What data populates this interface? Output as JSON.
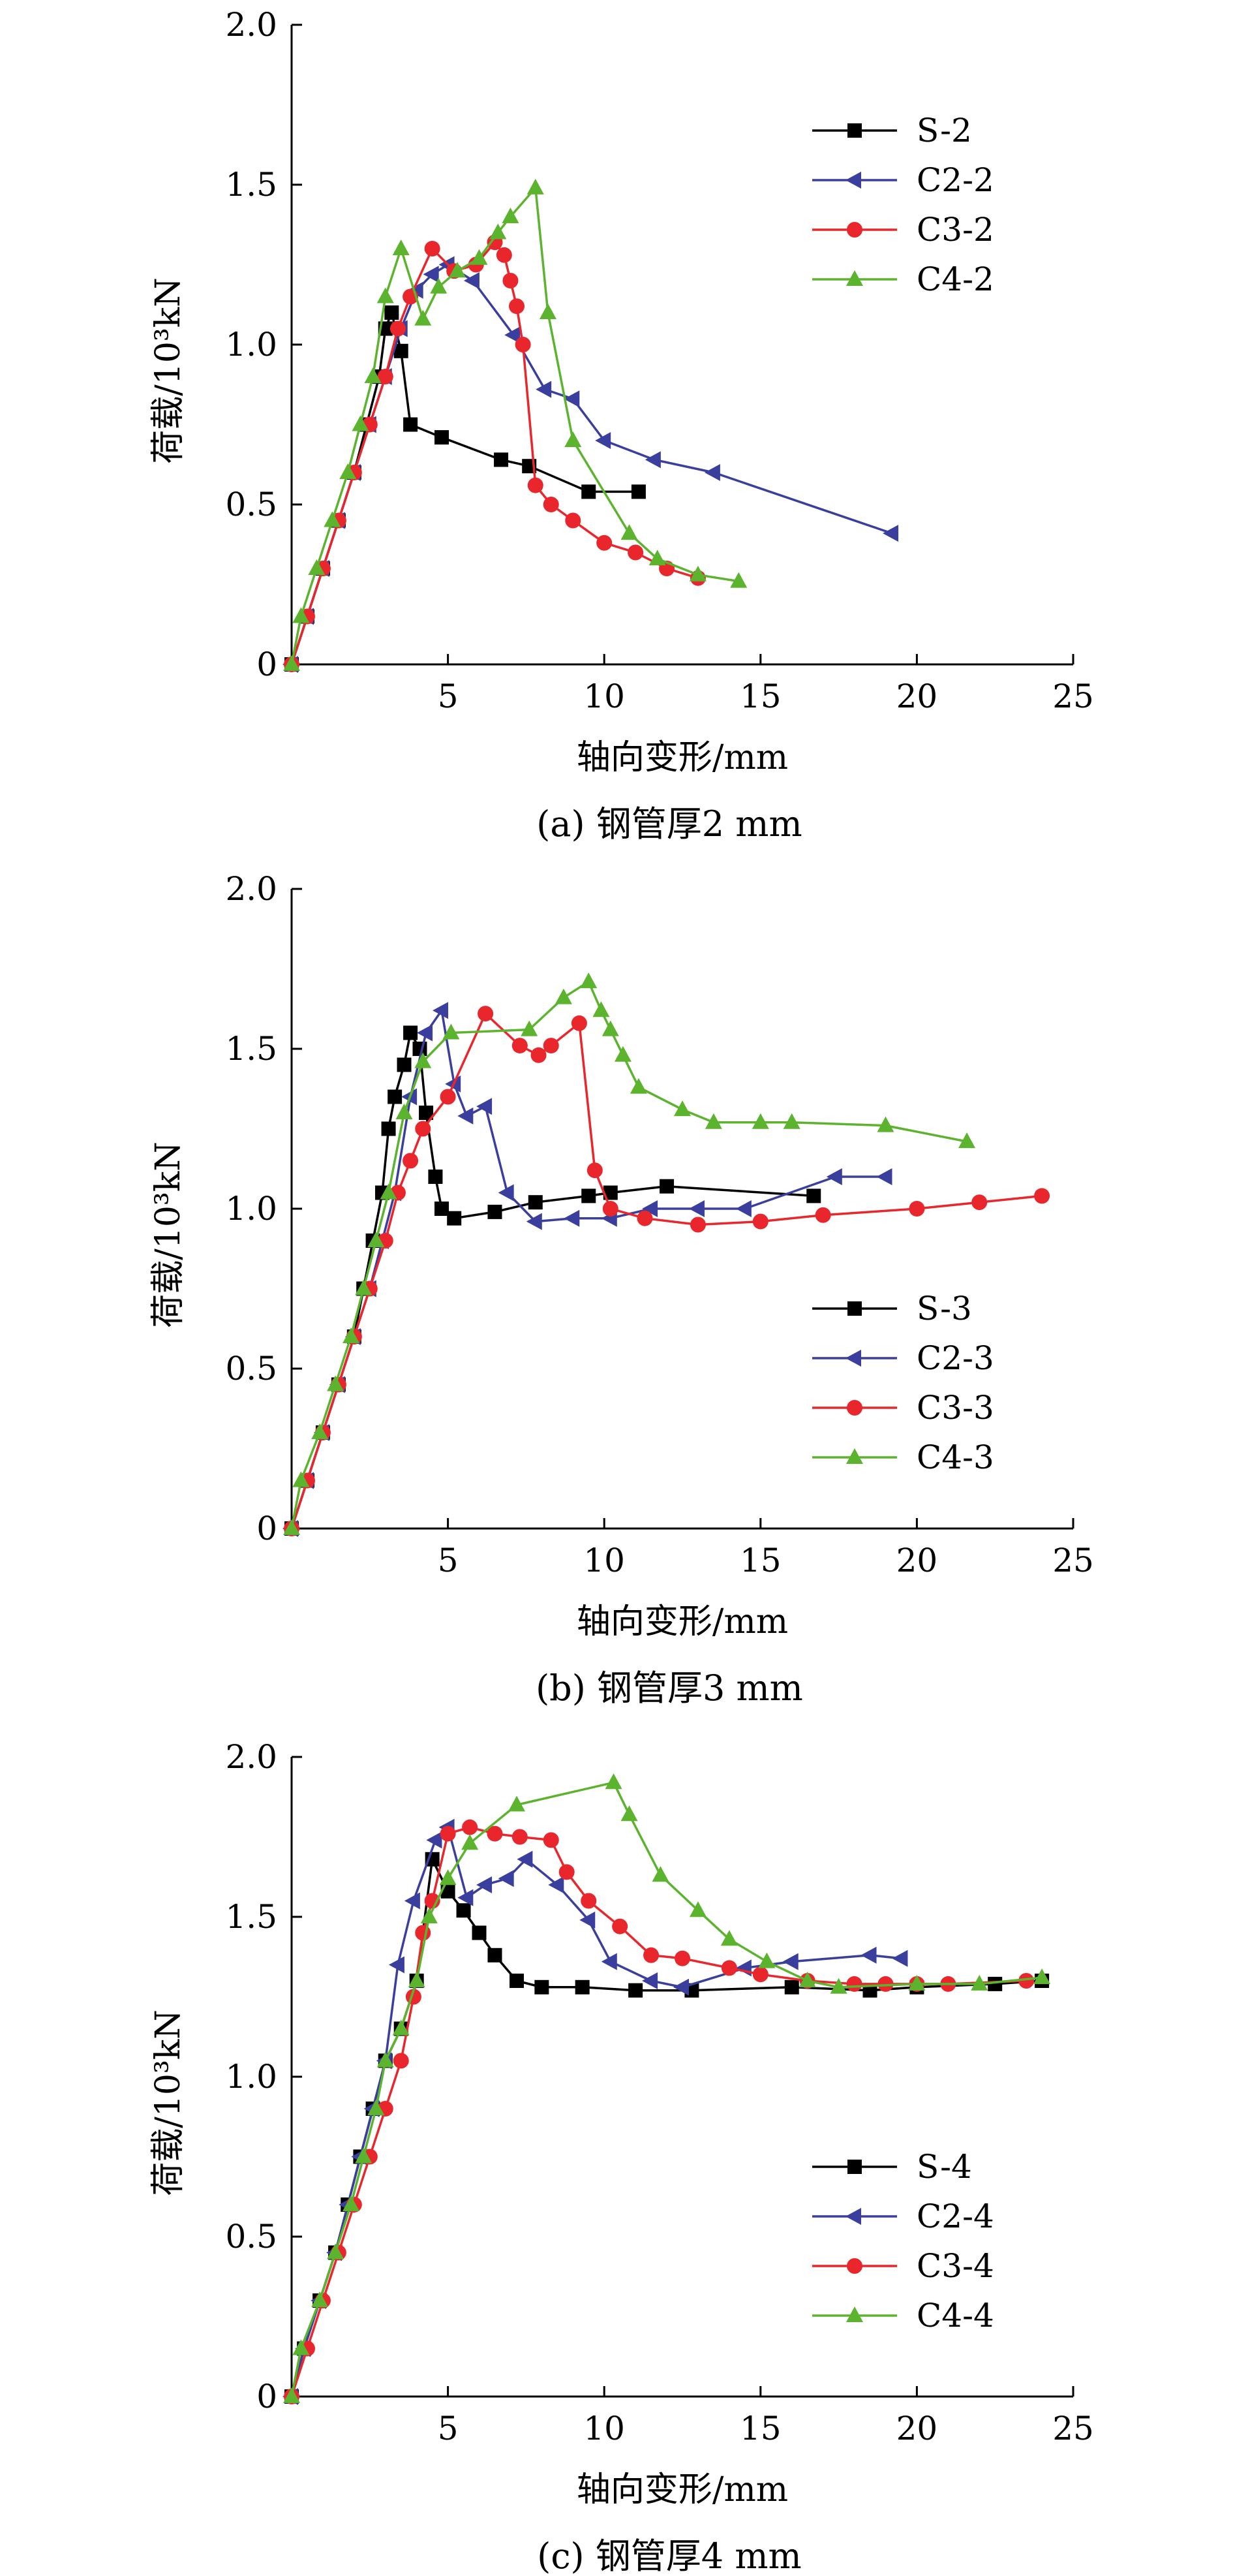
{
  "chart_data": [
    {
      "type": "line",
      "title": "(a) 钢管厚2 mm",
      "xlabel": "轴向变形/mm",
      "ylabel": "荷载/10³kN",
      "xlim": [
        0,
        25
      ],
      "ylim": [
        0,
        2.0
      ],
      "xticks": [
        "5",
        "10",
        "15",
        "20",
        "25"
      ],
      "yticks": [
        "0",
        "0.5",
        "1.0",
        "1.5",
        "2.0"
      ],
      "legend_position": "top-right",
      "series": [
        {
          "name": "S-2",
          "color": "#000000",
          "marker": "square",
          "x": [
            0,
            0.5,
            1.0,
            1.5,
            2.0,
            2.4,
            2.8,
            3.0,
            3.2,
            3.5,
            3.8,
            4.8,
            6.7,
            7.6,
            9.5,
            11.1
          ],
          "y": [
            0,
            0.15,
            0.3,
            0.45,
            0.6,
            0.75,
            0.9,
            1.05,
            1.1,
            0.98,
            0.75,
            0.71,
            0.64,
            0.62,
            0.54,
            0.54
          ]
        },
        {
          "name": "C2-2",
          "color": "#3a3f9e",
          "marker": "triangle-left",
          "x": [
            0,
            0.5,
            1.0,
            1.5,
            2.0,
            2.5,
            3.0,
            3.5,
            4.0,
            4.5,
            5.0,
            5.8,
            7.1,
            8.1,
            9.0,
            10.0,
            11.6,
            13.5,
            19.2
          ],
          "y": [
            0,
            0.15,
            0.3,
            0.45,
            0.6,
            0.75,
            0.9,
            1.05,
            1.17,
            1.22,
            1.25,
            1.2,
            1.03,
            0.86,
            0.83,
            0.7,
            0.64,
            0.6,
            0.41
          ]
        },
        {
          "name": "C3-2",
          "color": "#e8262c",
          "marker": "circle",
          "x": [
            0,
            0.5,
            1.0,
            1.5,
            2.0,
            2.5,
            3.0,
            3.4,
            3.8,
            4.5,
            5.2,
            5.9,
            6.5,
            6.8,
            7.0,
            7.2,
            7.4,
            7.8,
            8.3,
            9.0,
            10.0,
            11.0,
            12.0,
            13.0
          ],
          "y": [
            0,
            0.15,
            0.3,
            0.45,
            0.6,
            0.75,
            0.9,
            1.05,
            1.15,
            1.3,
            1.23,
            1.25,
            1.32,
            1.28,
            1.2,
            1.12,
            1.0,
            0.56,
            0.5,
            0.45,
            0.38,
            0.35,
            0.3,
            0.27
          ]
        },
        {
          "name": "C4-2",
          "color": "#5cb32e",
          "marker": "triangle-up",
          "x": [
            0,
            0.3,
            0.8,
            1.3,
            1.8,
            2.2,
            2.6,
            3.0,
            3.5,
            4.2,
            4.7,
            5.3,
            6.0,
            6.6,
            7.0,
            7.8,
            8.2,
            9.0,
            10.8,
            11.7,
            13.0,
            14.3
          ],
          "y": [
            0,
            0.15,
            0.3,
            0.45,
            0.6,
            0.75,
            0.9,
            1.15,
            1.3,
            1.08,
            1.18,
            1.23,
            1.27,
            1.35,
            1.4,
            1.49,
            1.1,
            0.7,
            0.41,
            0.33,
            0.28,
            0.26
          ]
        }
      ]
    },
    {
      "type": "line",
      "title": "(b) 钢管厚3 mm",
      "xlabel": "轴向变形/mm",
      "ylabel": "荷载/10³kN",
      "xlim": [
        0,
        25
      ],
      "ylim": [
        0,
        2.0
      ],
      "xticks": [
        "5",
        "10",
        "15",
        "20",
        "25"
      ],
      "yticks": [
        "0",
        "0.5",
        "1.0",
        "1.5",
        "2.0"
      ],
      "legend_position": "bottom-right",
      "series": [
        {
          "name": "S-3",
          "color": "#000000",
          "marker": "square",
          "x": [
            0,
            0.5,
            1.0,
            1.5,
            2.0,
            2.3,
            2.6,
            2.9,
            3.1,
            3.3,
            3.6,
            3.8,
            4.1,
            4.3,
            4.6,
            4.8,
            5.2,
            6.5,
            7.8,
            9.5,
            10.2,
            12.0,
            16.7
          ],
          "y": [
            0,
            0.15,
            0.3,
            0.45,
            0.6,
            0.75,
            0.9,
            1.05,
            1.25,
            1.35,
            1.45,
            1.55,
            1.5,
            1.3,
            1.1,
            1.0,
            0.97,
            0.99,
            1.02,
            1.04,
            1.05,
            1.07,
            1.04
          ]
        },
        {
          "name": "C2-3",
          "color": "#3a3f9e",
          "marker": "triangle-left",
          "x": [
            0,
            0.5,
            1.0,
            1.5,
            2.0,
            2.5,
            2.9,
            3.3,
            3.8,
            4.3,
            4.8,
            5.2,
            5.6,
            6.2,
            6.9,
            7.8,
            9.0,
            10.2,
            11.5,
            13.0,
            14.5,
            17.4,
            19.0
          ],
          "y": [
            0,
            0.15,
            0.3,
            0.45,
            0.6,
            0.75,
            0.9,
            1.05,
            1.35,
            1.55,
            1.62,
            1.39,
            1.29,
            1.32,
            1.05,
            0.96,
            0.97,
            0.97,
            1.0,
            1.0,
            1.0,
            1.1,
            1.1
          ]
        },
        {
          "name": "C3-3",
          "color": "#e8262c",
          "marker": "circle",
          "x": [
            0,
            0.5,
            1.0,
            1.5,
            2.0,
            2.5,
            3.0,
            3.4,
            3.8,
            4.2,
            5.0,
            6.2,
            7.3,
            7.9,
            8.3,
            9.2,
            9.7,
            10.2,
            11.3,
            13.0,
            15.0,
            17.0,
            20.0,
            22.0,
            24.0
          ],
          "y": [
            0,
            0.15,
            0.3,
            0.45,
            0.6,
            0.75,
            0.9,
            1.05,
            1.15,
            1.25,
            1.35,
            1.61,
            1.51,
            1.48,
            1.51,
            1.58,
            1.12,
            1.0,
            0.97,
            0.95,
            0.96,
            0.98,
            1.0,
            1.02,
            1.04
          ]
        },
        {
          "name": "C4-3",
          "color": "#5cb32e",
          "marker": "triangle-up",
          "x": [
            0,
            0.3,
            0.9,
            1.4,
            1.9,
            2.3,
            2.7,
            3.1,
            3.6,
            4.2,
            5.1,
            7.6,
            8.7,
            9.5,
            9.9,
            10.2,
            10.6,
            11.1,
            12.5,
            13.5,
            15.0,
            16.0,
            19.0,
            21.6
          ],
          "y": [
            0,
            0.15,
            0.3,
            0.45,
            0.6,
            0.75,
            0.9,
            1.05,
            1.3,
            1.46,
            1.55,
            1.56,
            1.66,
            1.71,
            1.62,
            1.56,
            1.48,
            1.38,
            1.31,
            1.27,
            1.27,
            1.27,
            1.26,
            1.21
          ]
        }
      ]
    },
    {
      "type": "line",
      "title": "(c) 钢管厚4 mm",
      "xlabel": "轴向变形/mm",
      "ylabel": "荷载/10³kN",
      "xlim": [
        0,
        25
      ],
      "ylim": [
        0,
        2.0
      ],
      "xticks": [
        "5",
        "10",
        "15",
        "20",
        "25"
      ],
      "yticks": [
        "0",
        "0.5",
        "1.0",
        "1.5",
        "2.0"
      ],
      "legend_position": "bottom-right",
      "series": [
        {
          "name": "S-4",
          "color": "#000000",
          "marker": "square",
          "x": [
            0,
            0.4,
            0.9,
            1.4,
            1.8,
            2.2,
            2.6,
            3.0,
            3.5,
            4.0,
            4.5,
            5.0,
            5.5,
            6.0,
            6.5,
            7.2,
            8.0,
            9.3,
            11.0,
            12.8,
            16.0,
            18.5,
            20.0,
            22.5,
            24.0
          ],
          "y": [
            0,
            0.15,
            0.3,
            0.45,
            0.6,
            0.75,
            0.9,
            1.05,
            1.15,
            1.3,
            1.68,
            1.58,
            1.52,
            1.45,
            1.38,
            1.3,
            1.28,
            1.28,
            1.27,
            1.27,
            1.28,
            1.27,
            1.28,
            1.29,
            1.3
          ]
        },
        {
          "name": "C2-4",
          "color": "#3a3f9e",
          "marker": "triangle-left",
          "x": [
            0,
            0.4,
            0.9,
            1.4,
            1.8,
            2.2,
            2.6,
            3.0,
            3.4,
            3.9,
            4.6,
            5.0,
            5.6,
            6.2,
            6.9,
            7.5,
            8.5,
            9.5,
            10.2,
            11.5,
            12.5,
            14.5,
            16.0,
            18.5,
            19.5
          ],
          "y": [
            0,
            0.15,
            0.3,
            0.45,
            0.6,
            0.75,
            0.9,
            1.05,
            1.35,
            1.55,
            1.74,
            1.78,
            1.56,
            1.6,
            1.62,
            1.68,
            1.6,
            1.49,
            1.36,
            1.3,
            1.28,
            1.34,
            1.36,
            1.38,
            1.37
          ]
        },
        {
          "name": "C3-4",
          "color": "#e8262c",
          "marker": "circle",
          "x": [
            0,
            0.5,
            1.0,
            1.5,
            2.0,
            2.5,
            3.0,
            3.5,
            3.9,
            4.2,
            4.5,
            5.0,
            5.7,
            6.5,
            7.3,
            8.3,
            8.8,
            9.5,
            10.5,
            11.5,
            12.5,
            14.0,
            15.0,
            16.5,
            18.0,
            19.0,
            20.0,
            21.0,
            23.5
          ],
          "y": [
            0,
            0.15,
            0.3,
            0.45,
            0.6,
            0.75,
            0.9,
            1.05,
            1.25,
            1.45,
            1.55,
            1.76,
            1.78,
            1.76,
            1.75,
            1.74,
            1.64,
            1.55,
            1.47,
            1.38,
            1.37,
            1.34,
            1.32,
            1.3,
            1.29,
            1.29,
            1.29,
            1.29,
            1.3
          ]
        },
        {
          "name": "C4-4",
          "color": "#5cb32e",
          "marker": "triangle-up",
          "x": [
            0,
            0.3,
            0.9,
            1.4,
            1.9,
            2.3,
            2.7,
            3.0,
            3.5,
            4.0,
            4.4,
            5.0,
            5.7,
            7.2,
            10.3,
            10.8,
            11.8,
            13.0,
            14.0,
            15.2,
            16.5,
            17.5,
            20.0,
            22.0,
            24.0
          ],
          "y": [
            0,
            0.15,
            0.3,
            0.45,
            0.6,
            0.75,
            0.9,
            1.05,
            1.15,
            1.3,
            1.5,
            1.62,
            1.73,
            1.85,
            1.92,
            1.82,
            1.63,
            1.52,
            1.43,
            1.36,
            1.3,
            1.28,
            1.29,
            1.29,
            1.31
          ]
        }
      ]
    }
  ]
}
